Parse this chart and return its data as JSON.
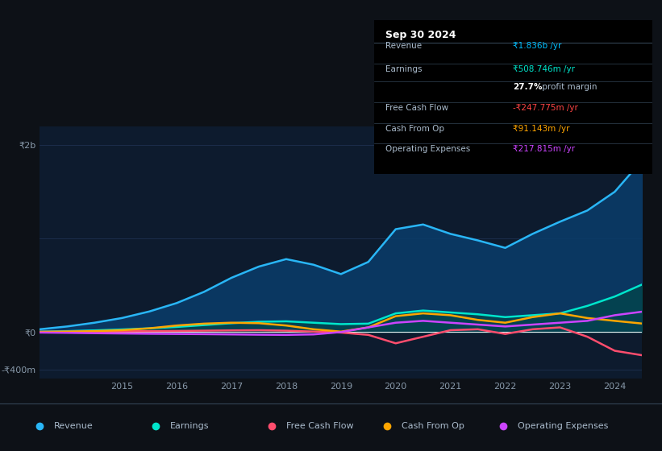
{
  "bg_color": "#0d1117",
  "plot_bg_color": "#0d1b2e",
  "grid_color": "#1e3050",
  "zero_line_color": "#ffffff",
  "ylim": [
    -500000000,
    2200000000
  ],
  "yticks": [
    -400000000,
    0,
    2000000000
  ],
  "ytick_labels": [
    "-₹400m",
    "₹0",
    "₹2b"
  ],
  "xticks": [
    2015,
    2016,
    2017,
    2018,
    2019,
    2020,
    2021,
    2022,
    2023,
    2024
  ],
  "info_box_date": "Sep 30 2024",
  "info_rows": [
    {
      "label": "Revenue",
      "value": "₹1.836b /yr",
      "value_color": "#00bfff"
    },
    {
      "label": "Earnings",
      "value": "₹508.746m /yr",
      "value_color": "#00e5cc"
    },
    {
      "label": "",
      "value": "27.7% profit margin",
      "value_color": "#cccccc"
    },
    {
      "label": "Free Cash Flow",
      "value": "-₹247.775m /yr",
      "value_color": "#ff4444"
    },
    {
      "label": "Cash From Op",
      "value": "₹91.143m /yr",
      "value_color": "#ffa500"
    },
    {
      "label": "Operating Expenses",
      "value": "₹217.815m /yr",
      "value_color": "#cc44ff"
    }
  ],
  "legend": [
    {
      "label": "Revenue",
      "color": "#29b6f6"
    },
    {
      "label": "Earnings",
      "color": "#00e5cc"
    },
    {
      "label": "Free Cash Flow",
      "color": "#ff4d6d"
    },
    {
      "label": "Cash From Op",
      "color": "#ffa500"
    },
    {
      "label": "Operating Expenses",
      "color": "#cc44ff"
    }
  ],
  "revenue_fill_color": "#0a3d6b",
  "earnings_fill_color": "#004d40",
  "years": [
    2013.5,
    2014.0,
    2014.5,
    2015.0,
    2015.5,
    2016.0,
    2016.5,
    2017.0,
    2017.5,
    2018.0,
    2018.5,
    2019.0,
    2019.5,
    2020.0,
    2020.5,
    2021.0,
    2021.5,
    2022.0,
    2022.5,
    2023.0,
    2023.5,
    2024.0,
    2024.5
  ],
  "revenue": [
    30000000,
    60000000,
    100000000,
    150000000,
    220000000,
    310000000,
    430000000,
    580000000,
    700000000,
    780000000,
    720000000,
    620000000,
    750000000,
    1100000000,
    1150000000,
    1050000000,
    980000000,
    900000000,
    1050000000,
    1180000000,
    1300000000,
    1500000000,
    1836000000
  ],
  "earnings": [
    5000000,
    10000000,
    18000000,
    28000000,
    40000000,
    55000000,
    75000000,
    95000000,
    110000000,
    115000000,
    100000000,
    85000000,
    90000000,
    200000000,
    230000000,
    210000000,
    190000000,
    160000000,
    180000000,
    200000000,
    280000000,
    380000000,
    508746000
  ],
  "fcf": [
    2000000,
    3000000,
    5000000,
    8000000,
    10000000,
    12000000,
    15000000,
    18000000,
    20000000,
    15000000,
    5000000,
    -5000000,
    -30000000,
    -120000000,
    -50000000,
    20000000,
    30000000,
    -20000000,
    30000000,
    50000000,
    -50000000,
    -200000000,
    -247775000
  ],
  "cash_from_op": [
    2000000,
    5000000,
    10000000,
    20000000,
    40000000,
    70000000,
    90000000,
    100000000,
    95000000,
    70000000,
    30000000,
    5000000,
    50000000,
    170000000,
    200000000,
    180000000,
    130000000,
    100000000,
    160000000,
    200000000,
    150000000,
    120000000,
    91143000
  ],
  "op_expenses": [
    -5000000,
    -8000000,
    -12000000,
    -15000000,
    -18000000,
    -20000000,
    -22000000,
    -25000000,
    -28000000,
    -30000000,
    -25000000,
    0,
    50000000,
    100000000,
    120000000,
    100000000,
    80000000,
    60000000,
    80000000,
    100000000,
    120000000,
    180000000,
    217815000
  ]
}
